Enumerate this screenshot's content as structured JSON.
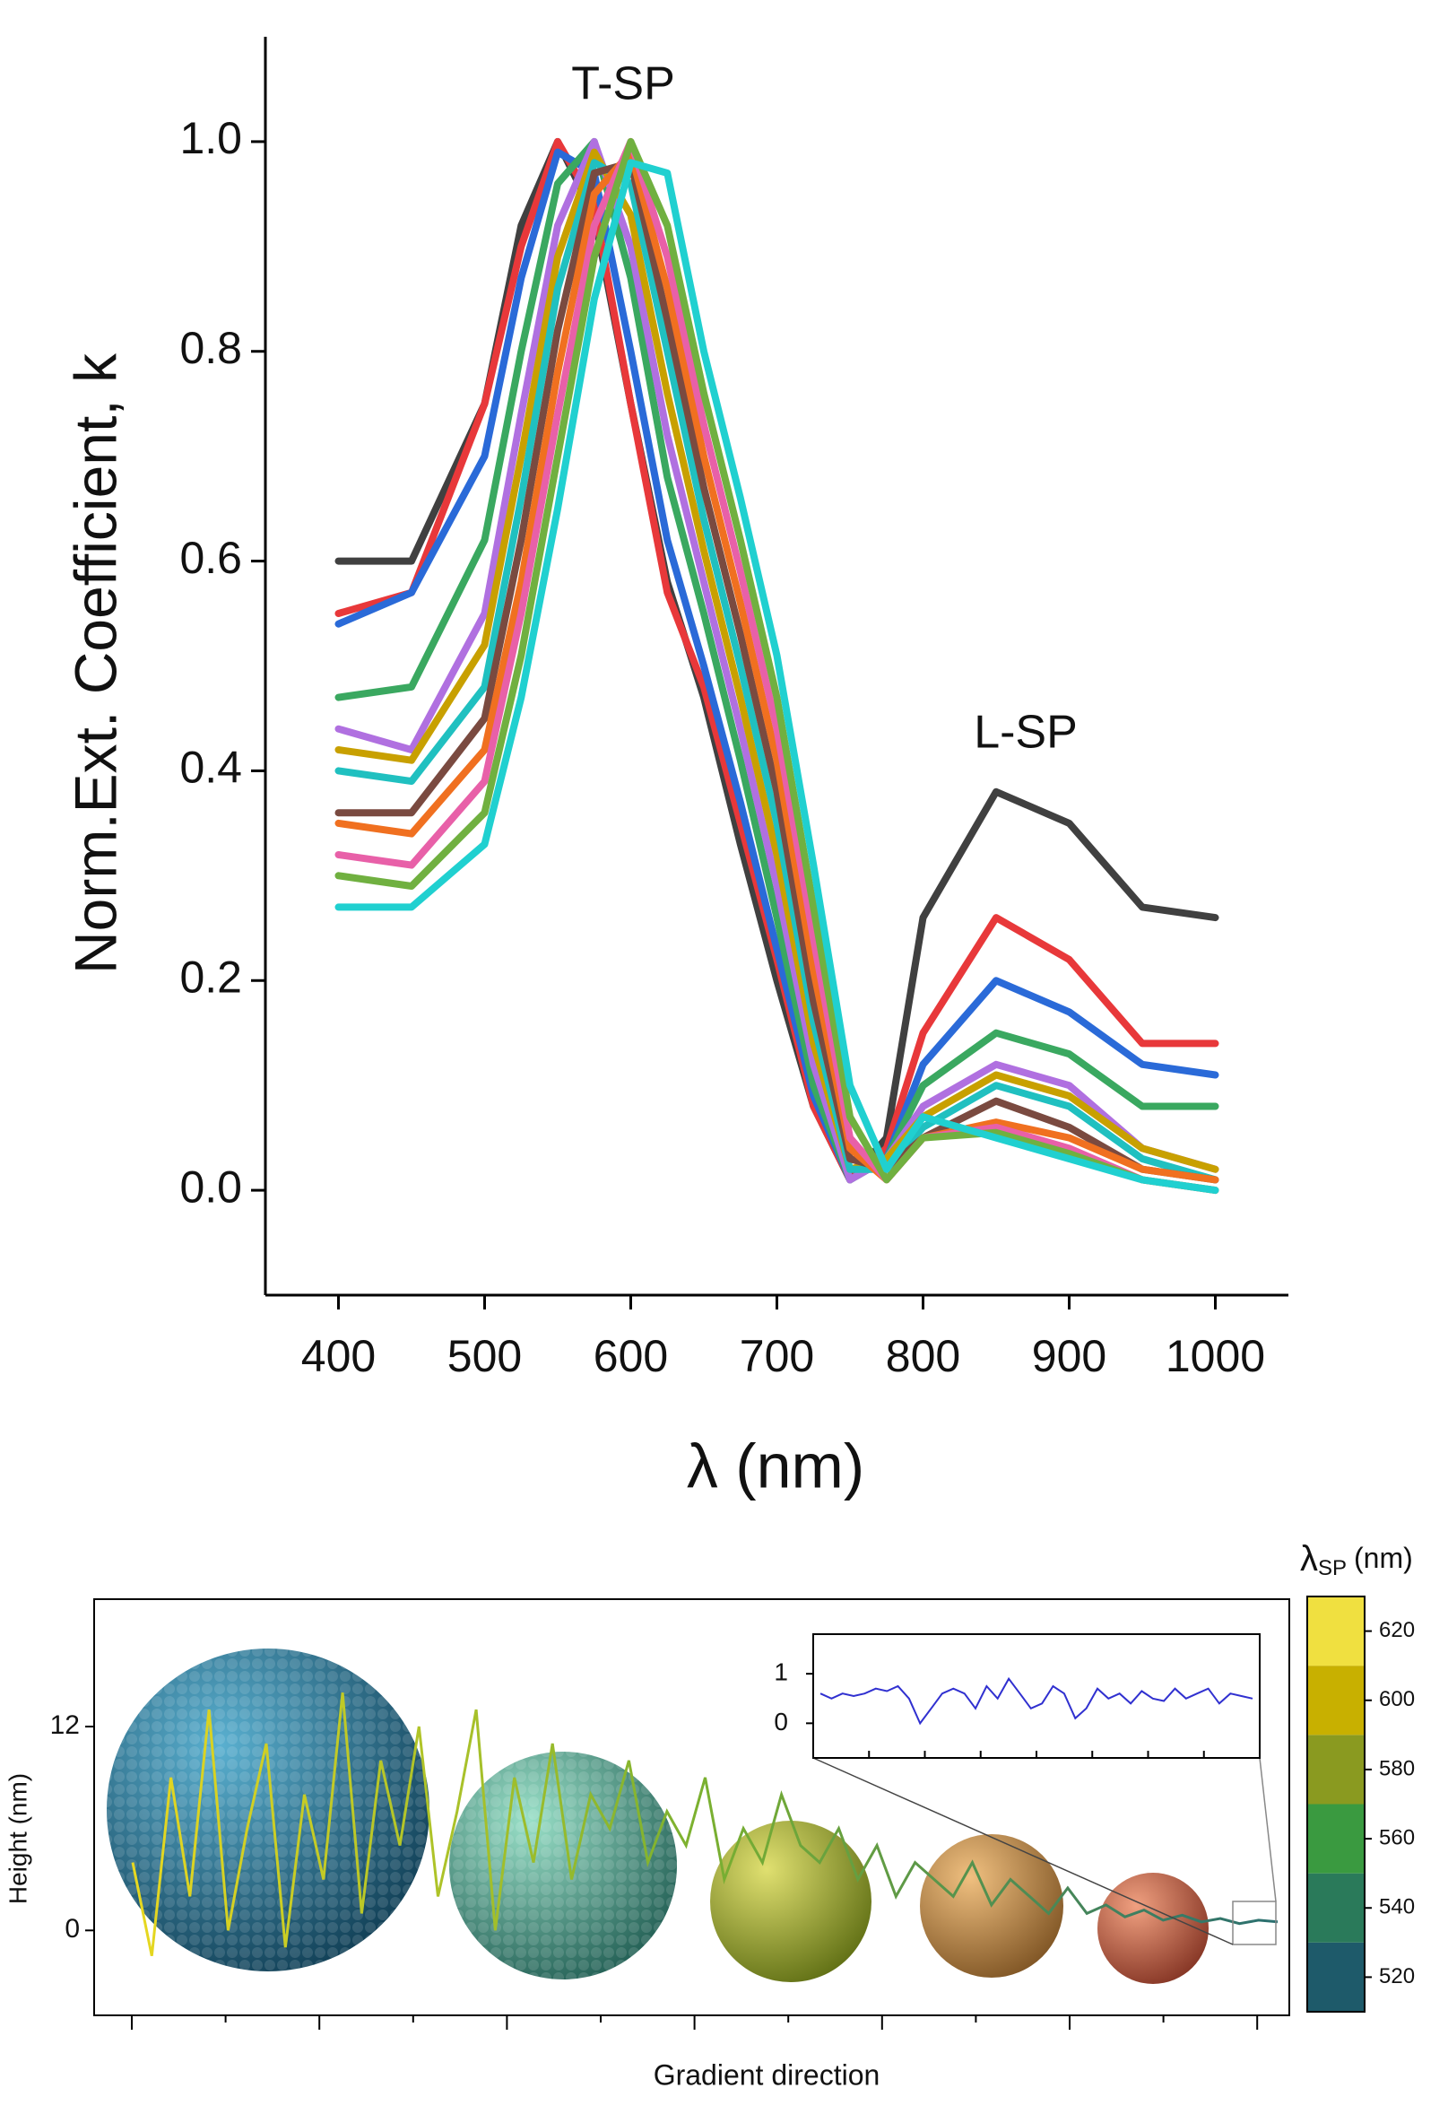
{
  "chart_data": [
    {
      "type": "line",
      "annotations": [
        "T-SP",
        "L-SP"
      ],
      "x_label": "λ (nm)",
      "y_label": "Norm.Ext. Coefficient, k",
      "x": [
        400,
        450,
        500,
        525,
        550,
        575,
        600,
        625,
        650,
        675,
        700,
        725,
        750,
        775,
        800,
        850,
        900,
        950,
        1000
      ],
      "xlim": [
        350,
        1050
      ],
      "xticks": [
        400,
        500,
        600,
        700,
        800,
        900,
        1000
      ],
      "ylim": [
        -0.1,
        1.1
      ],
      "yticks": [
        {
          "value": 0,
          "label": "0.0"
        },
        0.2,
        0.4,
        0.6,
        0.8,
        {
          "value": 1,
          "label": "1.0"
        }
      ],
      "series": [
        {
          "color": "#404040",
          "values": [
            0.6,
            0.6,
            0.75,
            0.92,
            1.0,
            0.93,
            0.75,
            0.58,
            0.47,
            0.33,
            0.2,
            0.08,
            0.01,
            0.05,
            0.26,
            0.38,
            0.35,
            0.27,
            0.26
          ]
        },
        {
          "color": "#e8383a",
          "values": [
            0.55,
            0.57,
            0.75,
            0.9,
            1.0,
            0.94,
            0.75,
            0.57,
            0.48,
            0.35,
            0.22,
            0.08,
            0.01,
            0.04,
            0.15,
            0.26,
            0.22,
            0.14,
            0.14
          ]
        },
        {
          "color": "#2a6ad8",
          "values": [
            0.54,
            0.57,
            0.7,
            0.87,
            0.99,
            0.97,
            0.8,
            0.62,
            0.5,
            0.37,
            0.23,
            0.09,
            0.01,
            0.03,
            0.12,
            0.2,
            0.17,
            0.12,
            0.11
          ]
        },
        {
          "color": "#3aa860",
          "values": [
            0.47,
            0.48,
            0.62,
            0.8,
            0.96,
            1.0,
            0.87,
            0.68,
            0.55,
            0.41,
            0.26,
            0.1,
            0.01,
            0.03,
            0.1,
            0.15,
            0.13,
            0.08,
            0.08
          ]
        },
        {
          "color": "#b070e0",
          "values": [
            0.44,
            0.42,
            0.55,
            0.74,
            0.92,
            1.0,
            0.9,
            0.72,
            0.58,
            0.44,
            0.29,
            0.12,
            0.01,
            0.03,
            0.08,
            0.12,
            0.1,
            0.04,
            0.02
          ]
        },
        {
          "color": "#c8a000",
          "values": [
            0.42,
            0.41,
            0.52,
            0.7,
            0.89,
            0.99,
            0.93,
            0.76,
            0.61,
            0.47,
            0.32,
            0.14,
            0.02,
            0.03,
            0.07,
            0.11,
            0.09,
            0.04,
            0.02
          ]
        },
        {
          "color": "#20c0c0",
          "values": [
            0.4,
            0.39,
            0.48,
            0.66,
            0.86,
            0.98,
            0.96,
            0.8,
            0.64,
            0.5,
            0.35,
            0.16,
            0.02,
            0.02,
            0.06,
            0.1,
            0.08,
            0.03,
            0.01
          ]
        },
        {
          "color": "#7a4a40",
          "values": [
            0.36,
            0.36,
            0.45,
            0.62,
            0.82,
            0.97,
            0.98,
            0.83,
            0.67,
            0.53,
            0.38,
            0.18,
            0.03,
            0.02,
            0.05,
            0.085,
            0.06,
            0.02,
            0.01
          ]
        },
        {
          "color": "#f07020",
          "values": [
            0.35,
            0.34,
            0.42,
            0.58,
            0.78,
            0.95,
            0.99,
            0.86,
            0.7,
            0.56,
            0.41,
            0.21,
            0.04,
            0.01,
            0.05,
            0.065,
            0.05,
            0.02,
            0.01
          ]
        },
        {
          "color": "#e860a8",
          "values": [
            0.32,
            0.31,
            0.39,
            0.55,
            0.74,
            0.92,
            1.0,
            0.89,
            0.73,
            0.59,
            0.44,
            0.24,
            0.05,
            0.01,
            0.05,
            0.06,
            0.04,
            0.01,
            0.0
          ]
        },
        {
          "color": "#70b040",
          "values": [
            0.3,
            0.29,
            0.36,
            0.51,
            0.7,
            0.89,
            1.0,
            0.92,
            0.76,
            0.62,
            0.47,
            0.27,
            0.07,
            0.01,
            0.05,
            0.055,
            0.035,
            0.01,
            0.0
          ]
        },
        {
          "color": "#20d0d0",
          "values": [
            0.27,
            0.27,
            0.33,
            0.47,
            0.65,
            0.85,
            0.98,
            0.97,
            0.8,
            0.66,
            0.51,
            0.31,
            0.1,
            0.02,
            0.07,
            0.05,
            0.03,
            0.01,
            0.0
          ]
        }
      ]
    },
    {
      "type": "profile",
      "x_label": "Gradient direction",
      "y_label": "Height (nm)",
      "ylim": [
        -5,
        19.5
      ],
      "yticks": [
        0,
        12
      ],
      "series": [
        {
          "colors": [
            "#e8d820",
            "#7ab030",
            "#2a6f70"
          ],
          "values": [
            4,
            -1.5,
            9,
            2,
            13,
            0,
            6,
            11,
            -1,
            8,
            3,
            14,
            1,
            10,
            5,
            12,
            2,
            7,
            13,
            0,
            9,
            4,
            11,
            3,
            8,
            6,
            10,
            4,
            7,
            5,
            9,
            3,
            6,
            4,
            8,
            5,
            4,
            6,
            3,
            5,
            2,
            4,
            3,
            2,
            4,
            1.5,
            3,
            2,
            1,
            2.5,
            1,
            1.5,
            0.8,
            1.2,
            0.6,
            0.9,
            0.5,
            0.7,
            0.4,
            0.6,
            0.5
          ]
        }
      ],
      "colorbar": {
        "symbol": "λ",
        "subscript": "SP",
        "unit": "(nm)",
        "levels": [
          510,
          530,
          550,
          570,
          590,
          610,
          630
        ],
        "colors": [
          "#1e5a6a",
          "#2a7a5a",
          "#3a9a40",
          "#8a9a20",
          "#c8b000",
          "#f0e040"
        ],
        "ticks": [
          520,
          540,
          560,
          580,
          600,
          620
        ]
      }
    },
    {
      "type": "inset",
      "ylim": [
        -0.7,
        1.8
      ],
      "yticks": [
        0,
        1
      ],
      "series": [
        {
          "color": "#3030d0",
          "values": [
            0.6,
            0.5,
            0.6,
            0.55,
            0.6,
            0.7,
            0.65,
            0.75,
            0.5,
            0,
            0.3,
            0.6,
            0.7,
            0.6,
            0.3,
            0.75,
            0.5,
            0.9,
            0.6,
            0.3,
            0.4,
            0.75,
            0.6,
            0.1,
            0.3,
            0.7,
            0.5,
            0.6,
            0.4,
            0.65,
            0.5,
            0.45,
            0.7,
            0.5,
            0.6,
            0.7,
            0.4,
            0.6,
            0.55,
            0.5
          ]
        }
      ]
    }
  ]
}
